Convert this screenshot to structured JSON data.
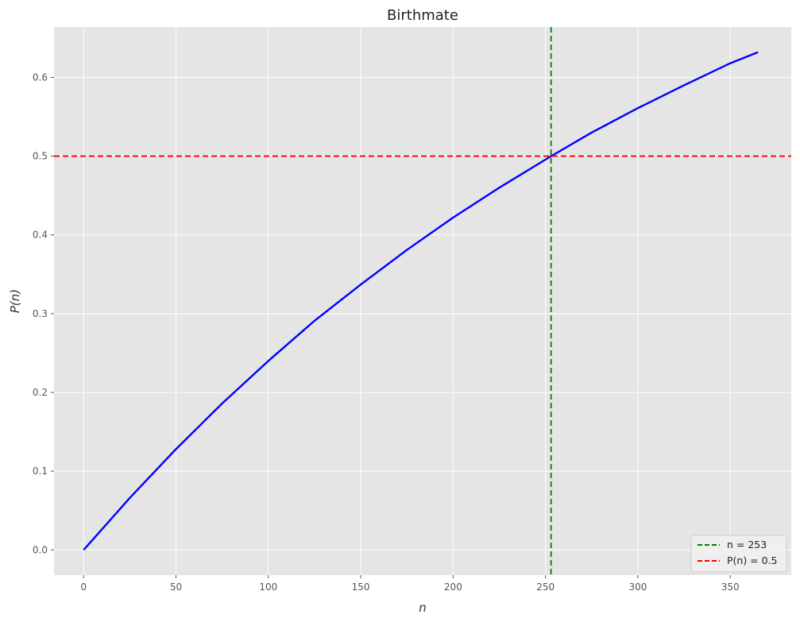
{
  "chart_data": {
    "type": "line",
    "title": "Birthmate",
    "xlabel": "n",
    "ylabel": "P(n)",
    "xlim": [
      -16,
      383
    ],
    "ylim": [
      -0.032,
      0.664
    ],
    "xticks": [
      0,
      50,
      100,
      150,
      200,
      250,
      300,
      350
    ],
    "yticks": [
      0.0,
      0.1,
      0.2,
      0.3,
      0.4,
      0.5,
      0.6
    ],
    "xtick_labels": [
      "0",
      "50",
      "100",
      "150",
      "200",
      "250",
      "300",
      "350"
    ],
    "ytick_labels": [
      "0.0",
      "0.1",
      "0.2",
      "0.3",
      "0.4",
      "0.5",
      "0.6"
    ],
    "grid": true,
    "background": "#e5e5e5",
    "series": [
      {
        "color": "#0000ff",
        "x": [
          0,
          25,
          50,
          75,
          100,
          125,
          150,
          175,
          200,
          225,
          253,
          275,
          300,
          325,
          350,
          365
        ],
        "y": [
          0.0,
          0.066,
          0.128,
          0.186,
          0.24,
          0.291,
          0.337,
          0.381,
          0.422,
          0.46,
          0.5,
          0.53,
          0.561,
          0.59,
          0.618,
          0.632
        ]
      }
    ],
    "reference_lines": [
      {
        "orientation": "vertical",
        "value": 253,
        "color": "#008000",
        "style": "dashed",
        "label": "n = 253"
      },
      {
        "orientation": "horizontal",
        "value": 0.5,
        "color": "#ff0000",
        "style": "dashed",
        "label": "P(n) = 0.5"
      }
    ],
    "legend": {
      "placement": "bottom-right",
      "entries": [
        "n = 253",
        "P(n) = 0.5"
      ]
    }
  }
}
